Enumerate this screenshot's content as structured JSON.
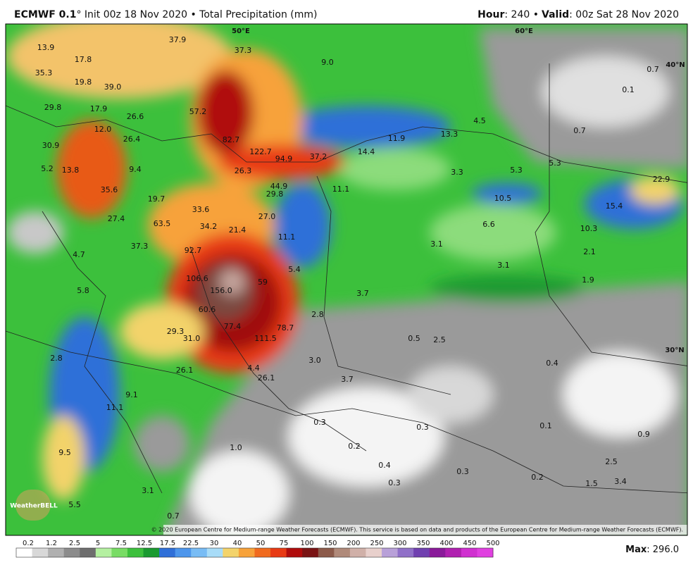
{
  "header": {
    "model": "ECMWF 0.1",
    "info": "° Init 00z 18 Nov 2020 • Total Precipitation (mm)",
    "hour_label": "Hour",
    "hour": ": 240 •",
    "valid_label": "Valid",
    "valid": ": 00z Sat 28 Nov 2020"
  },
  "map": {
    "grid_labels": [
      "50°E",
      "60°E",
      "40°N",
      "30°N"
    ],
    "labels": [
      "13.9",
      "17.8",
      "35.3",
      "19.8",
      "39.0",
      "29.8",
      "17.9",
      "26.6",
      "12.0",
      "26.4",
      "30.9",
      "5.2",
      "13.8",
      "9.4",
      "35.6",
      "19.7",
      "27.4",
      "63.5",
      "33.6",
      "34.2",
      "21.4",
      "27.0",
      "37.3",
      "92.7",
      "4.7",
      "106.6",
      "156.0",
      "5.8",
      "59",
      "60.6",
      "77.4",
      "78.7",
      "29.3",
      "31.0",
      "111.5",
      "26.1",
      "4.4",
      "26.1",
      "2.8",
      "9.1",
      "11.1",
      "9.5",
      "3.1",
      "5.5",
      "0.7",
      "1.0",
      "57.2",
      "82.7",
      "122.7",
      "94.9",
      "37.2",
      "26.3",
      "44.9",
      "29.8",
      "11.1",
      "5.4",
      "11.1",
      "14.4",
      "11.9",
      "13.3",
      "4.5",
      "3.3",
      "5.3",
      "5.3",
      "10.5",
      "6.6",
      "3.1",
      "3.1",
      "3.7",
      "2.8",
      "0.5",
      "2.5",
      "3.0",
      "3.7",
      "0.3",
      "0.3",
      "0.2",
      "0.4",
      "0.3",
      "0.3",
      "0.2",
      "1.9",
      "0.1",
      "0.9",
      "2.5",
      "3.4",
      "1.5",
      "0.4",
      "9.0",
      "37.9",
      "37.3",
      "0.7",
      "0.1",
      "0.7",
      "22.9",
      "15.4",
      "10.3",
      "2.1"
    ],
    "watermark": "WeatherBELL",
    "credit": "© 2020 European Centre for Medium-range Weather Forecasts (ECMWF). This service is based on data and products of the European Centre for Medium-range Weather Forecasts (ECMWF)."
  },
  "legend": {
    "ticks": [
      "0.2",
      "1.2",
      "2.5",
      "5",
      "7.5",
      "12.5",
      "17.5",
      "22.5",
      "30",
      "40",
      "50",
      "75",
      "100",
      "150",
      "200",
      "250",
      "300",
      "350",
      "400",
      "450",
      "500"
    ],
    "max_label": "Max",
    "max": ": 296.0"
  }
}
